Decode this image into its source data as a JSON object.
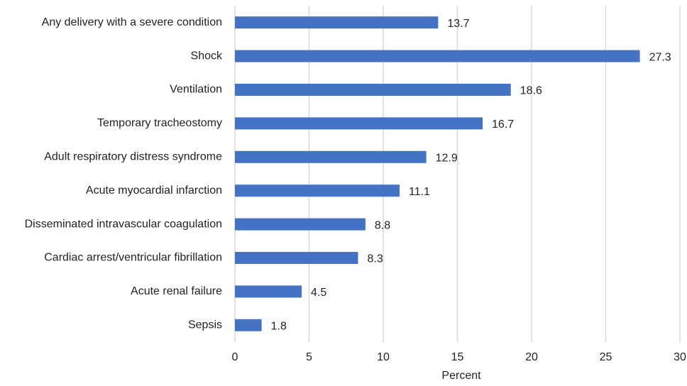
{
  "chart_data": {
    "type": "bar",
    "orientation": "horizontal",
    "x_label": "Percent",
    "categories": [
      "Any delivery with a severe condition",
      "Shock",
      "Ventilation",
      "Temporary tracheostomy",
      "Adult respiratory distress syndrome",
      "Acute myocardial infarction",
      "Disseminated intravascular coagulation",
      "Cardiac arrest/ventricular fibrillation",
      "Acute renal failure",
      "Sepsis"
    ],
    "values": [
      13.7,
      27.3,
      18.6,
      16.7,
      12.9,
      11.1,
      8.8,
      8.3,
      4.5,
      1.8
    ],
    "color": "#4472c4",
    "xlim": [
      0,
      30
    ],
    "xticks": [
      0,
      5,
      10,
      15,
      20,
      25,
      30
    ],
    "grid": true
  }
}
